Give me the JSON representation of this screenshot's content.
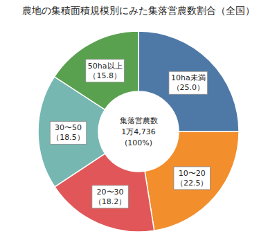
{
  "chart_data": {
    "type": "donut",
    "title": "農地の集積面積規模別にみた集落営農数割合（全国）",
    "categories": [
      "10ha未満",
      "10〜20",
      "20〜30",
      "30〜50",
      "50ha以上"
    ],
    "values": [
      25.0,
      22.5,
      18.2,
      18.5,
      15.8
    ],
    "value_labels": [
      "（25.0）",
      "（22.5）",
      "（18.2）",
      "（18.5）",
      "（15.8）"
    ],
    "data_labels": true,
    "annotations": [
      "集落営農数",
      "1万4,736",
      "(100%)"
    ]
  }
}
